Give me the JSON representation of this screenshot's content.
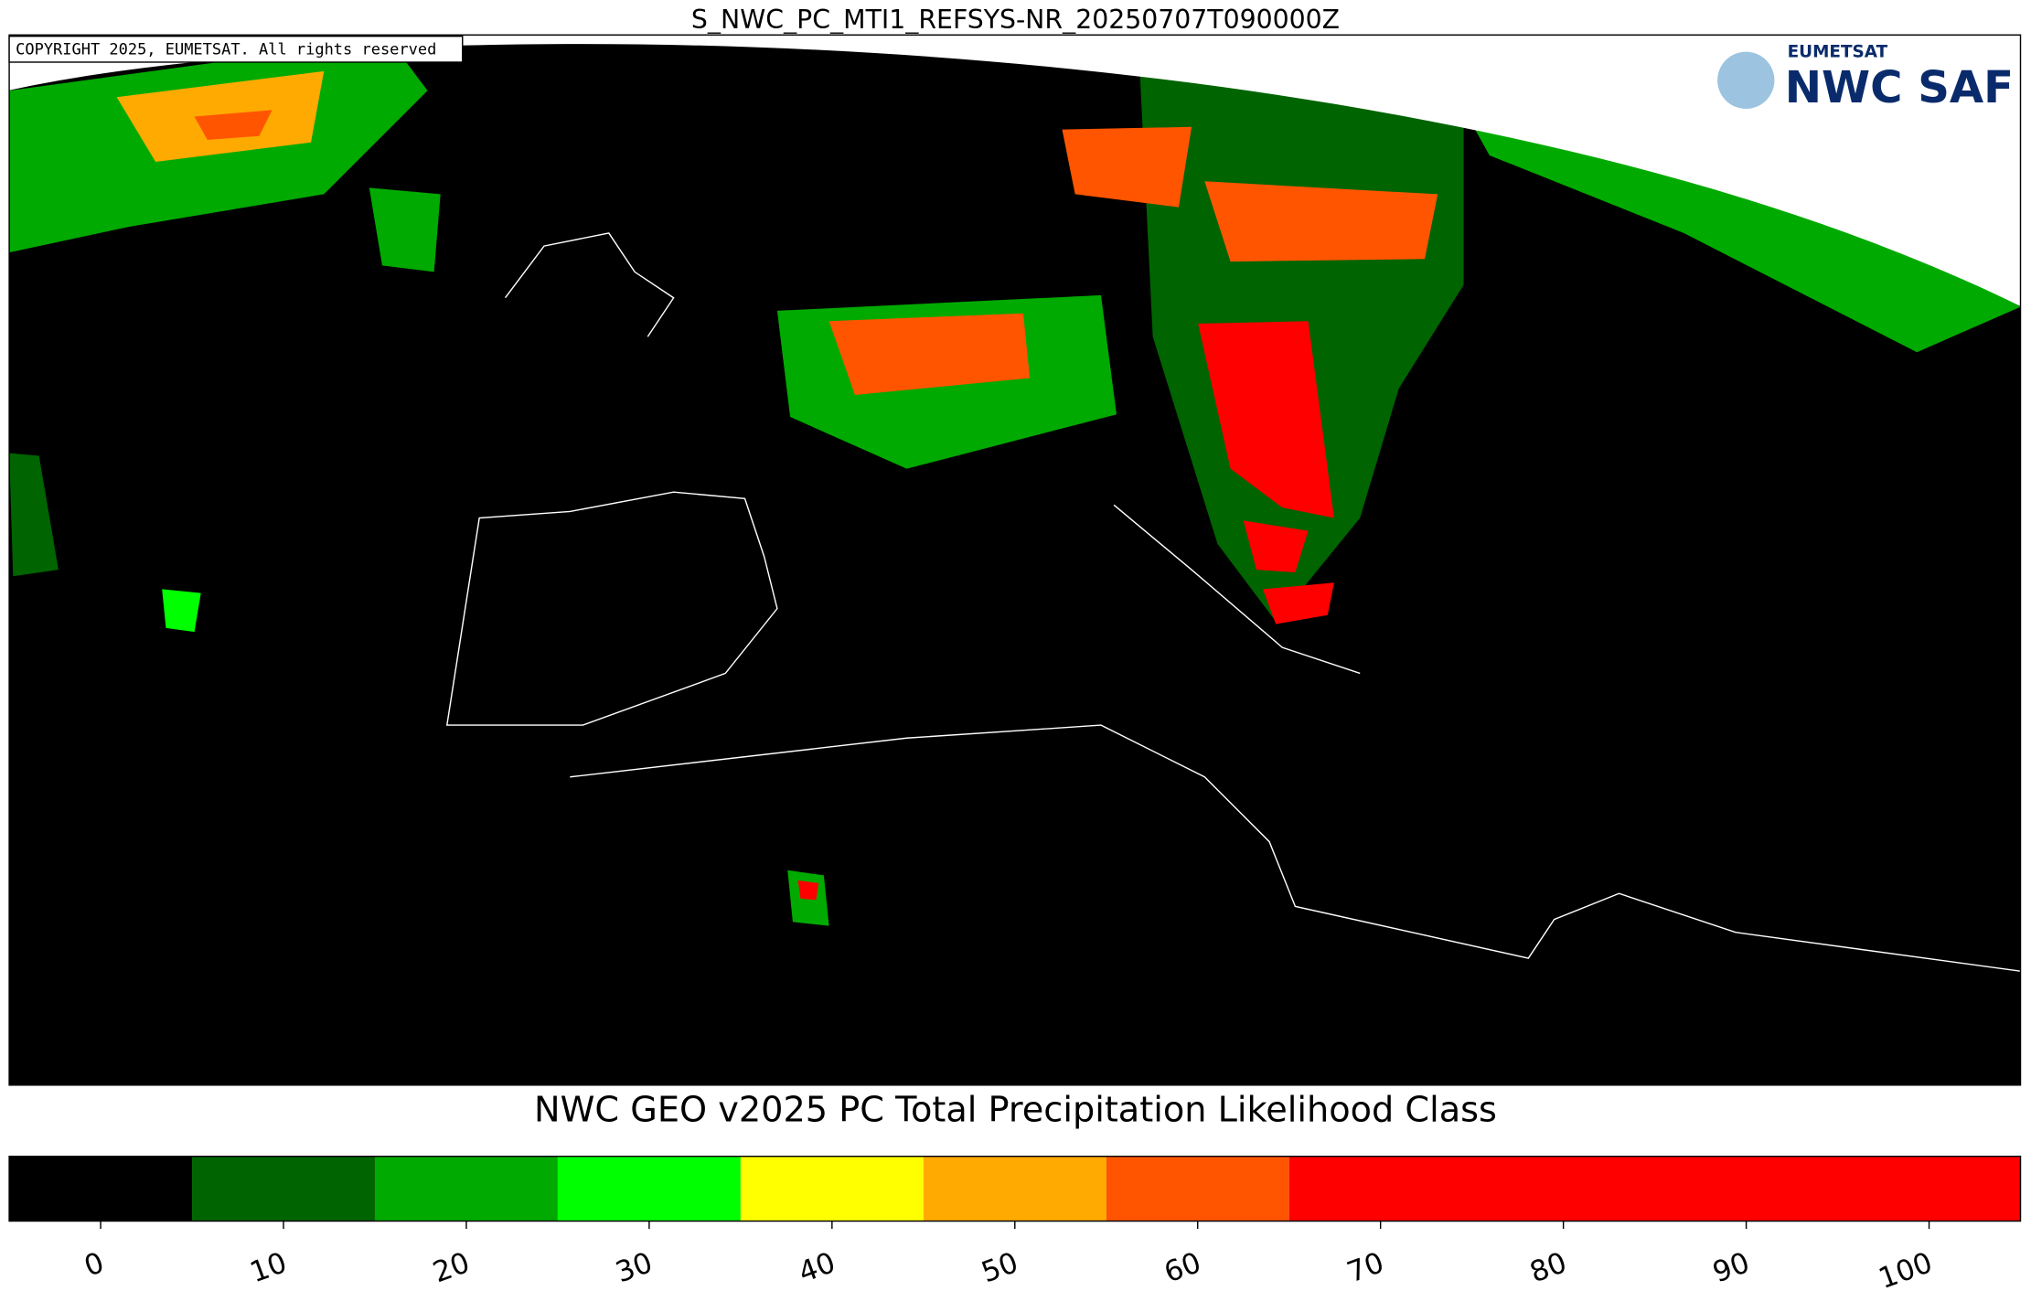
{
  "header": {
    "title": "S_NWC_PC_MTI1_REFSYS-NR_20250707T090000Z"
  },
  "copyright": "COPYRIGHT 2025, EUMETSAT. All rights reserved",
  "logo": {
    "agency": "EUMETSAT",
    "product": "NWC SAF"
  },
  "colorbar": {
    "title": "NWC GEO v2025 PC Total Precipitation Likelihood Class",
    "lim": [
      -5,
      105
    ],
    "boundaries": [
      -5,
      5,
      15,
      25,
      35,
      45,
      55,
      65,
      105
    ],
    "colors": [
      "#000000",
      "#006400",
      "#00aa00",
      "#00ff00",
      "#ffff00",
      "#ffaa00",
      "#ff5500",
      "#ff0000"
    ],
    "ticks": [
      0,
      10,
      20,
      30,
      40,
      50,
      60,
      70,
      80,
      90,
      100
    ]
  }
}
